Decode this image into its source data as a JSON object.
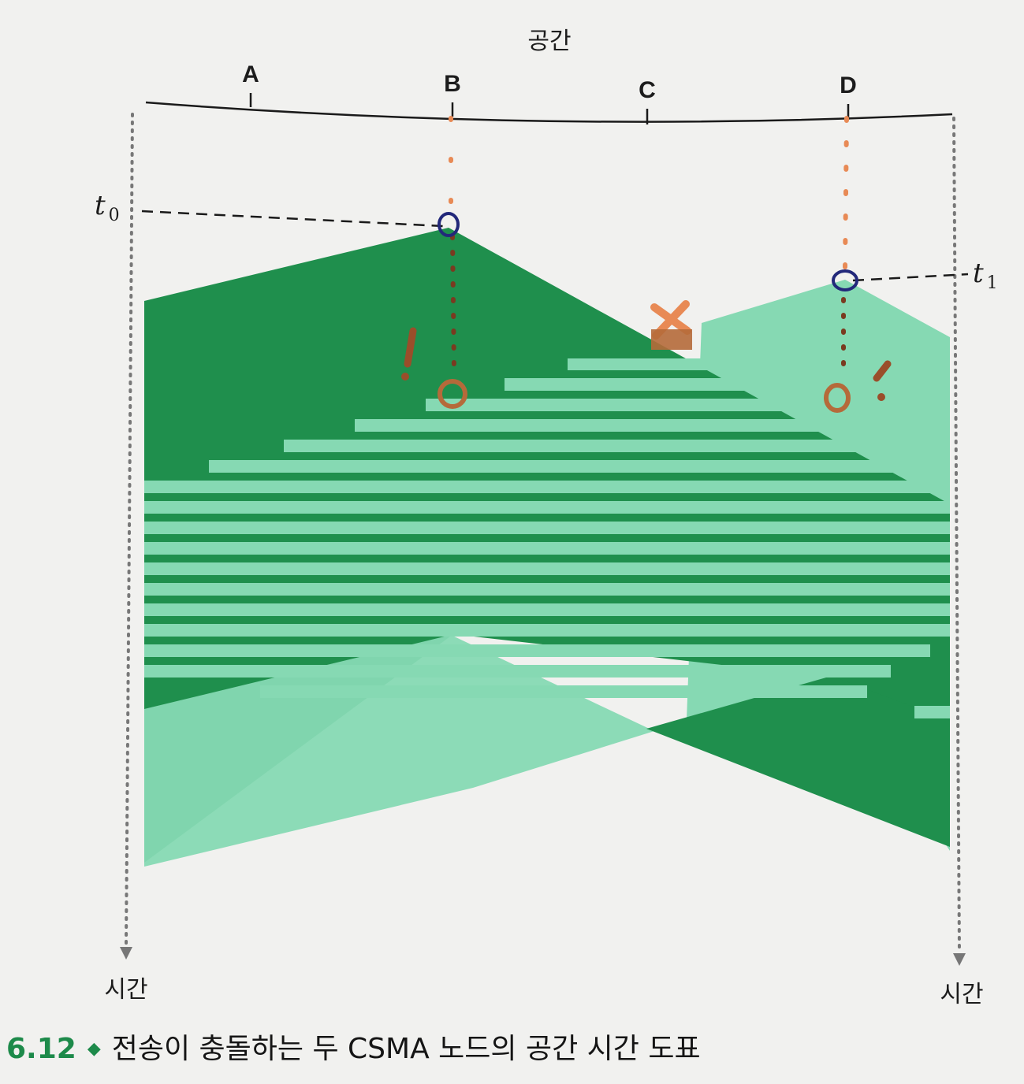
{
  "space_label": "공간",
  "time_label_left": "시간",
  "time_label_right": "시간",
  "nodes": [
    {
      "name": "A"
    },
    {
      "name": "B"
    },
    {
      "name": "C"
    },
    {
      "name": "D"
    }
  ],
  "time_markers": {
    "t0": {
      "letter": "t",
      "sub": "0"
    },
    "t1": {
      "letter": "t",
      "sub": "1"
    }
  },
  "caption": {
    "number": "6.12",
    "bullet": "◆",
    "text": "전송이 충돌하는 두 CSMA 노드의 공간 시간 도표"
  },
  "colors": {
    "dark_green": "#1f8f4d",
    "light_green": "#86d9b3",
    "annotation_orange": "#e88a55",
    "annotation_blue": "#22287a",
    "line": "#1a1a1a"
  }
}
